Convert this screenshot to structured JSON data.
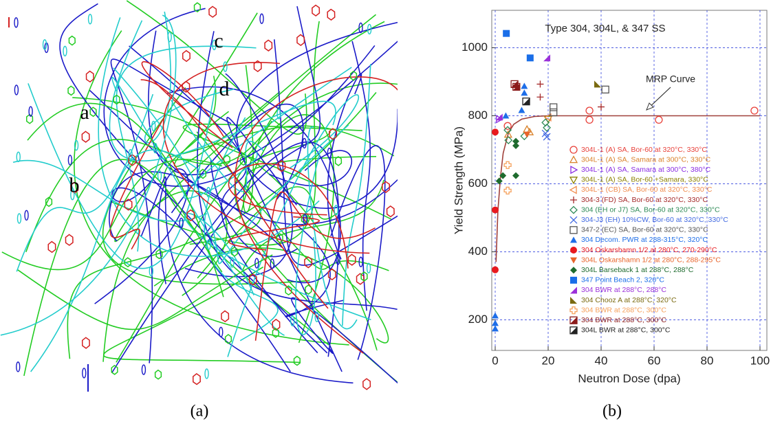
{
  "panel_a": {
    "labels": [
      "a",
      "b",
      "c",
      "d"
    ],
    "caption": "(a)"
  },
  "panel_b_caption": "(b)",
  "chart_data": {
    "type": "scatter",
    "title": "Type 304, 304L, & 347 SS",
    "x_label": "Neutron Dose (dpa)",
    "y_label": "Yield Strength (MPa)",
    "xlim": [
      -1.3,
      102.6
    ],
    "ylim": [
      110,
      1110
    ],
    "xticks": [
      0,
      20,
      40,
      60,
      80,
      100
    ],
    "yticks": [
      200,
      400,
      600,
      800,
      1000
    ],
    "grid": true,
    "curve": {
      "label": "MRP Curve",
      "color": "#a0403a",
      "x": [
        0.3,
        1,
        2,
        3,
        5,
        7,
        10,
        15,
        20,
        40,
        60,
        80,
        100
      ],
      "values": [
        370,
        520,
        620,
        690,
        750,
        775,
        790,
        798,
        800,
        800,
        800,
        800,
        800
      ]
    },
    "series": [
      {
        "name": "304L-1 (A) SA, Bor-60 at 320°C, 330°C",
        "color": "#e8413a",
        "marker": "o",
        "x": [
          4.7,
          35.6,
          35.6,
          61.8,
          97.9
        ],
        "values": [
          770,
          815,
          788,
          788,
          815
        ]
      },
      {
        "name": "304L-1 (A) SA, Samara at 300°C, 330°C",
        "color": "#d9822b",
        "marker": "^",
        "x": [
          4.9,
          12,
          13
        ],
        "values": [
          745,
          760,
          752
        ]
      },
      {
        "name": "304L-1 (A) SA, Samara at 300°C, 380°C",
        "color": "#8a2be2",
        "marker": ">",
        "x": [
          1.5
        ],
        "values": [
          790
        ]
      },
      {
        "name": "304L-1 (A) SA, Bor-60 +Samara, 330°C",
        "color": "#8b8000",
        "marker": "v",
        "x": [
          20
        ],
        "values": [
          790
        ]
      },
      {
        "name": "304L-1 (CB) SA, Bor-60 at 320°C, 330°C",
        "color": "#f08a4b",
        "marker": "<",
        "x": [
          20
        ],
        "values": [
          795
        ]
      },
      {
        "name": "304-3 (FD) SA, Bor-60 at 320°C, 330°C",
        "color": "#a52a2a",
        "marker": "+",
        "x": [
          17,
          17,
          40
        ],
        "values": [
          893,
          855,
          826
        ]
      },
      {
        "name": "304 (EH or J7) SA, Bor-60 at 320°C, 330°C",
        "color": "#2e8b57",
        "marker": "d",
        "x": [
          4.7,
          5,
          11,
          19,
          19.5
        ],
        "values": [
          758,
          728,
          740,
          780,
          765
        ]
      },
      {
        "name": "304-J3 (EH) 10%CW, Bor-60 at 320°C, 330°C",
        "color": "#4169e1",
        "marker": "x",
        "x": [
          19,
          19.5
        ],
        "values": [
          748,
          738
        ]
      },
      {
        "name": "347-2 (EC) SA, Bor-60 at 320°C, 330°C",
        "color": "#555555",
        "marker": "s",
        "x": [
          22,
          22,
          41.6
        ],
        "values": [
          825,
          810,
          877
        ]
      },
      {
        "name": "304 Decom. PWR at 288-315°C, 320°C",
        "color": "#1e6ee8",
        "marker": "A",
        "x": [
          0,
          0,
          0,
          4,
          11,
          11,
          10
        ],
        "values": [
          212,
          190,
          174,
          800,
          887,
          867,
          816
        ]
      },
      {
        "name": "304 Oskarshamn 1/2 at 280°C, 270-290°C",
        "color": "#e8191e",
        "marker": "O",
        "x": [
          0,
          0,
          0
        ],
        "values": [
          752,
          523,
          347
        ]
      },
      {
        "name": "304L Oskarshamn 1/2 at 280°C, 288-295°C",
        "color": "#e8642a",
        "marker": "V",
        "x": [
          12
        ],
        "values": [
          745
        ]
      },
      {
        "name": "304L Barseback 1 at 288°C, 288°C",
        "color": "#1e6b2e",
        "marker": "D",
        "x": [
          1.5,
          2.9,
          7.8,
          7.8,
          7.8
        ],
        "values": [
          608,
          624,
          624,
          725,
          712
        ]
      },
      {
        "name": "347 Point Beach 2, 320°C",
        "color": "#1a6ee8",
        "marker": "S",
        "x": [
          4.2,
          13.2
        ],
        "values": [
          1042,
          970
        ]
      },
      {
        "name": "304 BWR at 288°C, 288°C",
        "color": "#9b30d9",
        "marker": "tbr",
        "x": [
          19.5,
          1.5
        ],
        "values": [
          970,
          796
        ]
      },
      {
        "name": "304 Chooz A at 288°C, 320°C",
        "color": "#7a6a10",
        "marker": "tbl",
        "x": [
          38.7
        ],
        "values": [
          893
        ]
      },
      {
        "name": "304 BWR at 288°C, 300°C",
        "color": "#f5a05a",
        "marker": "P",
        "x": [
          4.7,
          4.7
        ],
        "values": [
          655,
          580
        ]
      },
      {
        "name": "304 BWR at 288°C, 300°C",
        "color": "#8b1a1a",
        "marker": "h",
        "x": [
          7.3,
          8
        ],
        "values": [
          893,
          885
        ]
      },
      {
        "name": "304L BWR at 288°C, 300°C",
        "color": "#222222",
        "marker": "h",
        "x": [
          11.7
        ],
        "values": [
          842
        ]
      }
    ]
  }
}
